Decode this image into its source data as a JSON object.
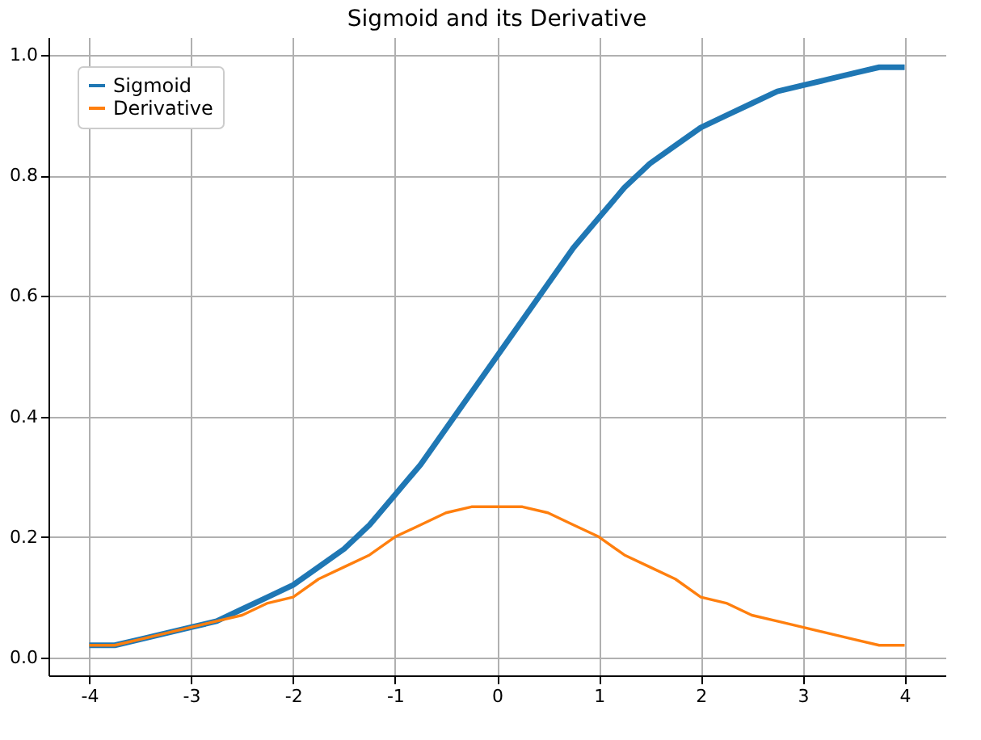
{
  "chart_data": {
    "type": "line",
    "title": "Sigmoid and its Derivative",
    "x": [
      -4,
      -3.75,
      -3.5,
      -3.25,
      -3,
      -2.75,
      -2.5,
      -2.25,
      -2,
      -1.75,
      -1.5,
      -1.25,
      -1,
      -0.75,
      -0.5,
      -0.25,
      0,
      0.25,
      0.5,
      0.75,
      1,
      1.25,
      1.5,
      1.75,
      2,
      2.25,
      2.5,
      2.75,
      3,
      3.25,
      3.5,
      3.75,
      4
    ],
    "series": [
      {
        "name": "Sigmoid",
        "color": "#1f77b4",
        "values": [
          0.02,
          0.02,
          0.03,
          0.04,
          0.05,
          0.06,
          0.08,
          0.1,
          0.12,
          0.15,
          0.18,
          0.22,
          0.27,
          0.32,
          0.38,
          0.44,
          0.5,
          0.56,
          0.62,
          0.68,
          0.73,
          0.78,
          0.82,
          0.85,
          0.88,
          0.9,
          0.92,
          0.94,
          0.95,
          0.96,
          0.97,
          0.98,
          0.98
        ]
      },
      {
        "name": "Derivative",
        "color": "#ff7f0e",
        "values": [
          0.02,
          0.02,
          0.03,
          0.04,
          0.05,
          0.06,
          0.07,
          0.09,
          0.1,
          0.13,
          0.15,
          0.17,
          0.2,
          0.22,
          0.24,
          0.25,
          0.25,
          0.25,
          0.24,
          0.22,
          0.2,
          0.17,
          0.15,
          0.13,
          0.1,
          0.09,
          0.07,
          0.06,
          0.05,
          0.04,
          0.03,
          0.02,
          0.02
        ]
      }
    ],
    "xlim": [
      -4.4,
      4.4
    ],
    "xticks": [
      -4,
      -3,
      -2,
      -1,
      0,
      1,
      2,
      3,
      4
    ],
    "ylim": [
      -0.03,
      1.03
    ],
    "yticks": [
      {
        "value": 0,
        "label": "0.0"
      },
      0.2,
      0.4,
      0.6,
      0.8,
      {
        "value": 1,
        "label": "1.0"
      }
    ],
    "grid": true,
    "legend": "top left",
    "marker": "none",
    "line_style": "solid"
  }
}
